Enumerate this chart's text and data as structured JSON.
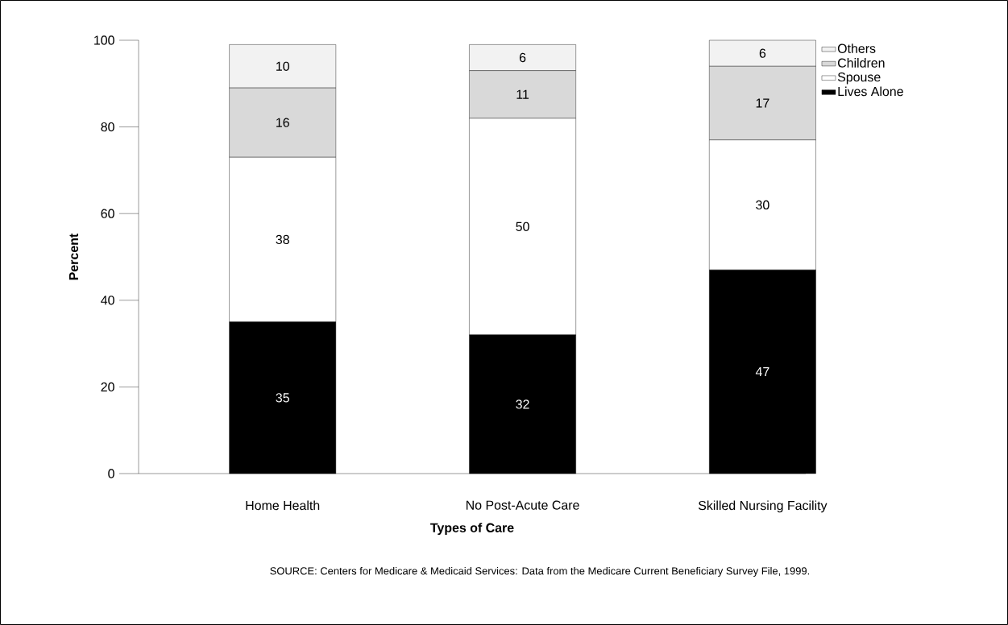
{
  "chart_data": {
    "type": "bar",
    "stacked": true,
    "categories": [
      "Home Health",
      "No Post-Acute Care",
      "Skilled Nursing Facility"
    ],
    "xlabel": "Types of Care",
    "ylabel": "Percent",
    "ylim": [
      0,
      100
    ],
    "yticks": [
      0,
      20,
      40,
      60,
      80,
      100
    ],
    "data_labels": true,
    "legend": "top right",
    "annotations": [
      "SOURCE: Centers for Medicare & Medicaid Services: Data from the Medicare Current Beneficiary Survey File, 1999."
    ],
    "series": [
      {
        "name": "Lives Alone",
        "color": "#000000",
        "values": [
          35,
          32,
          47
        ]
      },
      {
        "name": "Spouse",
        "color": "#ffffff",
        "values": [
          38,
          50,
          30
        ]
      },
      {
        "name": "Children",
        "color": "#d9d9d9",
        "values": [
          16,
          11,
          17
        ]
      },
      {
        "name": "Others",
        "color": "#f2f2f2",
        "values": [
          10,
          6,
          6
        ]
      }
    ]
  }
}
